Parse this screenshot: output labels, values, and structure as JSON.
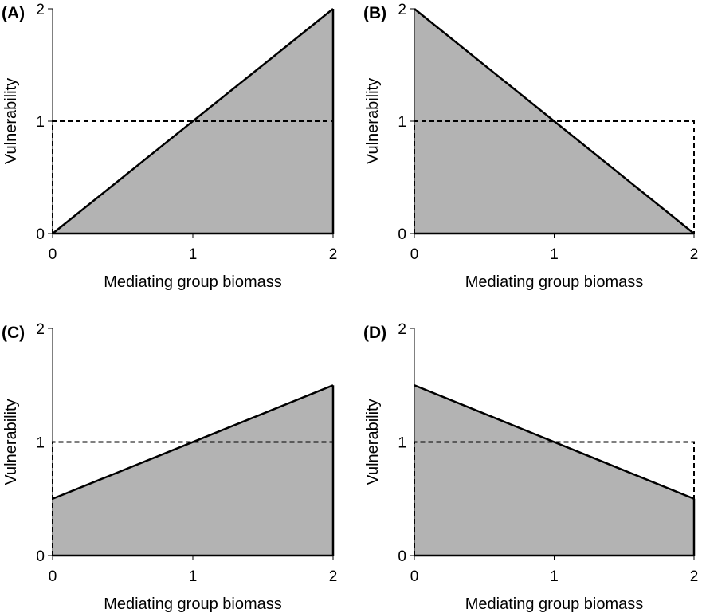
{
  "chart_data": [
    {
      "type": "area",
      "panel_label": "(A)",
      "xlabel": "Mediating group biomass",
      "ylabel": "Vulnerability",
      "xlim": [
        0,
        2
      ],
      "ylim": [
        0,
        2
      ],
      "xticks": [
        "0",
        "1",
        "2"
      ],
      "yticks": [
        "0",
        "1",
        "2"
      ],
      "x": [
        0,
        2
      ],
      "y": [
        0,
        2
      ],
      "reference_y": 1,
      "fill_color": "#b3b3b3"
    },
    {
      "type": "area",
      "panel_label": "(B)",
      "xlabel": "Mediating group biomass",
      "ylabel": "Vulnerability",
      "xlim": [
        0,
        2
      ],
      "ylim": [
        0,
        2
      ],
      "xticks": [
        "0",
        "1",
        "2"
      ],
      "yticks": [
        "0",
        "1",
        "2"
      ],
      "x": [
        0,
        2
      ],
      "y": [
        2,
        0
      ],
      "reference_y": 1,
      "fill_color": "#b3b3b3"
    },
    {
      "type": "area",
      "panel_label": "(C)",
      "xlabel": "Mediating group biomass",
      "ylabel": "Vulnerability",
      "xlim": [
        0,
        2
      ],
      "ylim": [
        0,
        2
      ],
      "xticks": [
        "0",
        "1",
        "2"
      ],
      "yticks": [
        "0",
        "1",
        "2"
      ],
      "x": [
        0,
        2
      ],
      "y": [
        0.5,
        1.5
      ],
      "reference_y": 1,
      "fill_color": "#b3b3b3"
    },
    {
      "type": "area",
      "panel_label": "(D)",
      "xlabel": "Mediating group biomass",
      "ylabel": "Vulnerability",
      "xlim": [
        0,
        2
      ],
      "ylim": [
        0,
        2
      ],
      "xticks": [
        "0",
        "1",
        "2"
      ],
      "yticks": [
        "0",
        "1",
        "2"
      ],
      "x": [
        0,
        2
      ],
      "y": [
        1.5,
        0.5
      ],
      "reference_y": 1,
      "fill_color": "#b3b3b3"
    }
  ]
}
